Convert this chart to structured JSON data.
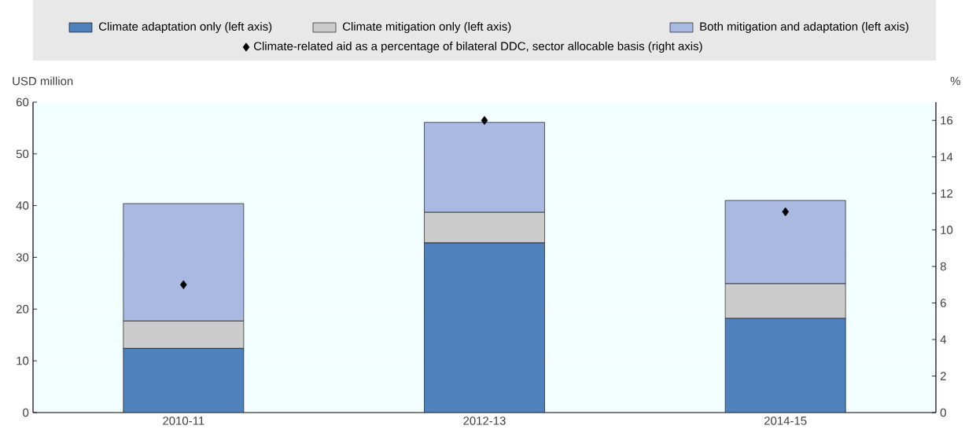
{
  "chart_data": {
    "type": "bar",
    "stacked": true,
    "ylabel": "USD million",
    "y2label": "%",
    "categories": [
      "2010-11",
      "2012-13",
      "2014-15"
    ],
    "series": [
      {
        "name": "Climate adaptation only (left axis)",
        "color": "#4f81bd",
        "values": [
          12.4,
          32.8,
          18.2
        ]
      },
      {
        "name": "Climate mitigation only (left axis)",
        "color": "#cccccc",
        "values": [
          5.3,
          5.9,
          6.7
        ]
      },
      {
        "name": "Both mitigation and adaptation (left axis)",
        "color": "#a9b9e2",
        "values": [
          22.7,
          17.4,
          16.1
        ]
      },
      {
        "name": "Climate-related aid as a percentage of bilateral DDC, sector allocable basis (right axis)",
        "type": "scatter",
        "axis": "y2",
        "marker": "diamond",
        "color": "#000000",
        "values": [
          7.0,
          16.0,
          11.0
        ]
      }
    ],
    "ylim": [
      0,
      60
    ],
    "yticks": [
      0,
      10,
      20,
      30,
      40,
      50,
      60
    ],
    "y2lim": [
      0,
      17
    ],
    "y2ticks": [
      0,
      2,
      4,
      6,
      8,
      10,
      12,
      14,
      16
    ],
    "grid": "y",
    "legend": "top"
  }
}
